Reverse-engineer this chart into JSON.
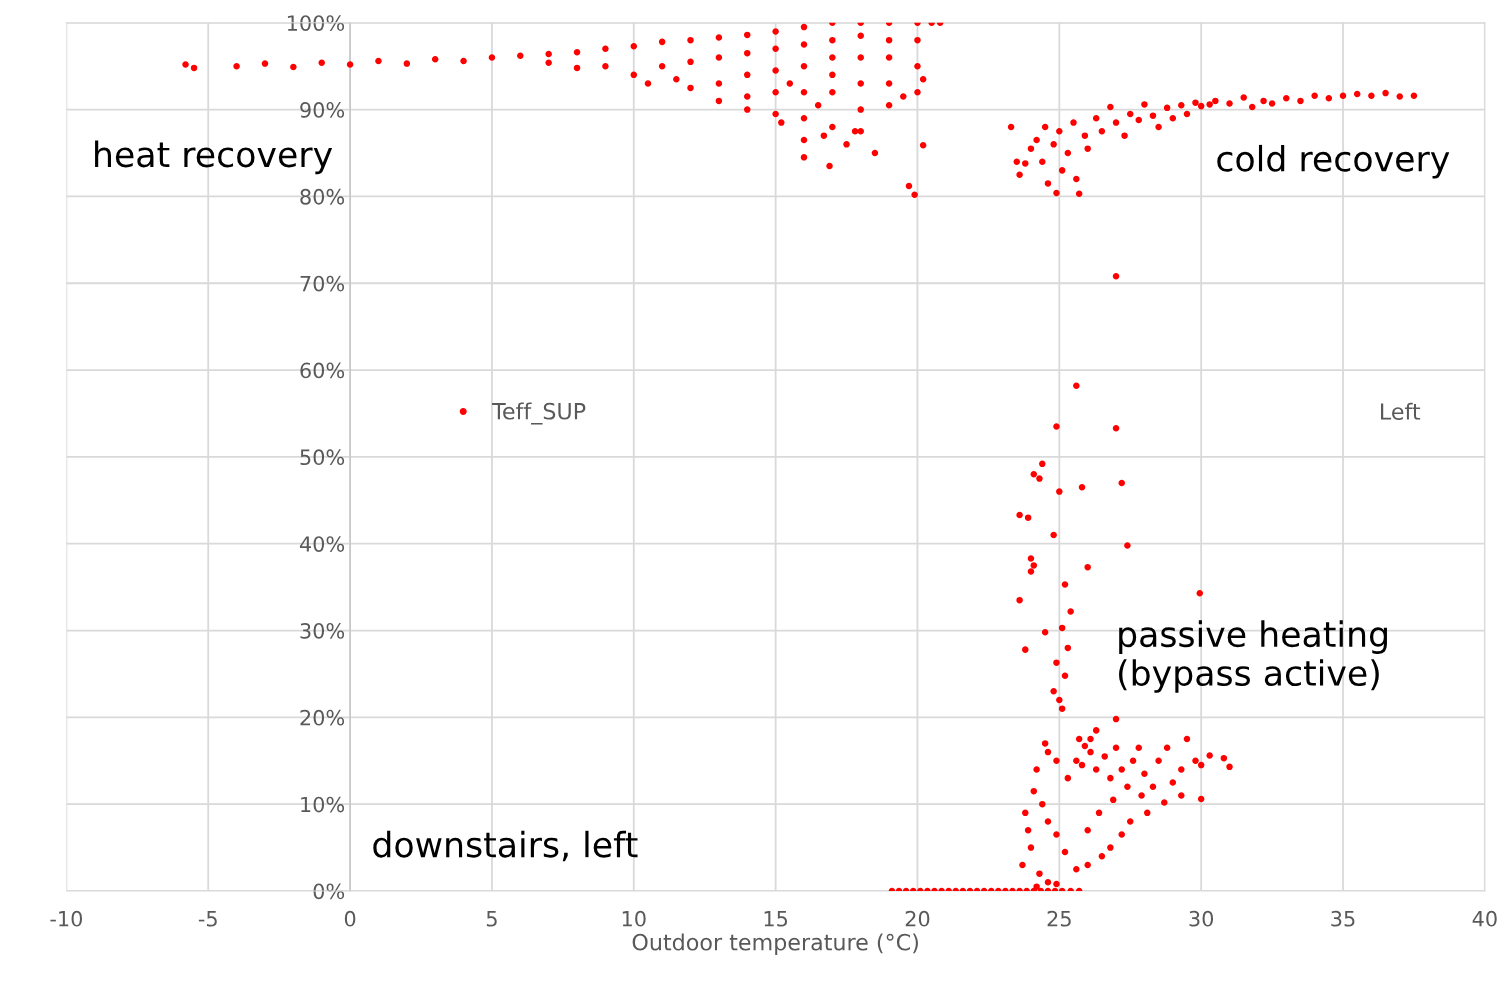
{
  "chart_data": {
    "type": "scatter",
    "title": "Left",
    "xlabel": "Outdoor temperature (°C)",
    "xlim": [
      -10,
      40
    ],
    "xticks": [
      -10,
      -5,
      0,
      5,
      10,
      15,
      20,
      25,
      30,
      35,
      40
    ],
    "ylim": [
      0,
      100
    ],
    "yticks": [
      {
        "value": 0,
        "label": "0%"
      },
      {
        "value": 10,
        "label": "10%"
      },
      {
        "value": 20,
        "label": "20%"
      },
      {
        "value": 30,
        "label": "30%"
      },
      {
        "value": 40,
        "label": "40%"
      },
      {
        "value": 50,
        "label": "50%"
      },
      {
        "value": 60,
        "label": "60%"
      },
      {
        "value": 70,
        "label": "70%"
      },
      {
        "value": 80,
        "label": "80%"
      },
      {
        "value": 90,
        "label": "90%"
      },
      {
        "value": 100,
        "label": "100%"
      }
    ],
    "grid": true,
    "legend": "left",
    "marker": "circle",
    "annotations": [
      "heat recovery",
      "cold recovery",
      "passive heating\n(bypass active)",
      "downstairs, left"
    ],
    "series": [
      {
        "name": "Teff_SUP",
        "color": "#ff0000",
        "x": [
          -5.8,
          -5.5,
          -4,
          -3,
          -2,
          -1,
          0,
          1,
          2,
          3,
          4,
          5,
          6,
          7,
          7,
          8,
          8,
          9,
          9,
          10,
          10,
          10.5,
          11,
          11,
          11.5,
          12,
          12,
          12,
          13,
          13,
          13,
          13,
          14,
          14,
          14,
          14,
          14,
          15,
          15,
          15,
          15,
          15,
          15.2,
          15.5,
          16,
          16,
          16,
          16,
          16,
          16,
          16,
          16.5,
          16.7,
          16.9,
          17,
          17,
          17,
          17,
          17,
          17,
          17.5,
          17.8,
          18,
          18,
          18,
          18,
          18,
          18,
          18.5,
          19,
          19,
          19,
          19,
          19,
          19.5,
          20,
          20,
          20,
          20,
          20.2,
          20.5,
          20.8,
          19.7,
          19.9,
          20.2,
          23.3,
          23.5,
          23.6,
          23.8,
          24,
          24.2,
          24.4,
          24.5,
          24.6,
          24.8,
          24.9,
          25,
          25.1,
          25.3,
          25.5,
          25.6,
          25.7,
          25.9,
          26,
          26.3,
          26.5,
          26.8,
          27,
          27.3,
          27.5,
          27.8,
          28,
          28.3,
          28.5,
          28.8,
          29,
          29.3,
          29.5,
          29.8,
          30,
          30.3,
          30.5,
          31,
          31.5,
          31.8,
          32.2,
          32.5,
          33,
          33.5,
          34,
          34.5,
          35,
          35.5,
          36,
          36.5,
          37,
          37.5,
          27.0,
          25.6,
          24.9,
          27.0,
          24.4,
          24.1,
          24.3,
          25,
          25.8,
          27.2,
          23.6,
          23.9,
          24.8,
          27.4,
          24.0,
          24.1,
          24.0,
          26,
          23.6,
          25.2,
          29.95,
          25.4,
          24.5,
          25.1,
          23.8,
          25.3,
          24.9,
          25.2,
          24.8,
          25,
          25.1,
          27.0,
          26.3,
          26.1,
          24.5,
          25.7,
          25.9,
          24.2,
          24.6,
          24.9,
          25.3,
          25.6,
          25.8,
          26.1,
          26.3,
          26.6,
          26.8,
          27,
          27.2,
          27.4,
          27.6,
          27.8,
          28,
          28.3,
          28.5,
          28.8,
          29,
          29.3,
          29.5,
          29.8,
          30,
          30.3,
          30.8,
          31,
          30,
          29.3,
          28.7,
          28.1,
          27.5,
          27.2,
          26.8,
          26.5,
          26,
          25.6,
          25.2,
          24.9,
          24.6,
          24.4,
          24.1,
          23.8,
          23.9,
          24,
          23.7,
          24.3,
          24.6,
          24.2,
          24.9,
          25.1,
          25.4,
          25.7,
          26,
          26.4,
          26.9,
          27.9,
          19.1,
          19.35,
          19.6,
          19.85,
          20.1,
          20.35,
          20.6,
          20.85,
          21.1,
          21.35,
          21.6,
          21.85,
          22.1,
          22.35,
          22.6,
          22.85,
          23.1,
          23.35,
          23.6,
          23.85,
          24.1,
          24.35,
          24.6,
          24.85
        ],
        "values": [
          95.2,
          94.8,
          95,
          95.3,
          94.9,
          95.4,
          95.2,
          95.6,
          95.3,
          95.8,
          95.6,
          96,
          96.2,
          96.4,
          95.4,
          96.6,
          94.8,
          97,
          95,
          97.3,
          94,
          93,
          97.8,
          95,
          93.5,
          98,
          95.5,
          92.5,
          98.3,
          96,
          93,
          91,
          98.6,
          96.5,
          94,
          91.5,
          90,
          99,
          97,
          94.5,
          92,
          89.5,
          88.5,
          93,
          99.5,
          97.5,
          95,
          92,
          89,
          86.5,
          84.5,
          90.5,
          87,
          83.5,
          100,
          98,
          96,
          94,
          92,
          88,
          86,
          87.5,
          100,
          98.5,
          96,
          93,
          90,
          87.5,
          85,
          100,
          98,
          96,
          93,
          90.5,
          91.5,
          100,
          98,
          95,
          92,
          93.5,
          100,
          100,
          81.2,
          80.2,
          85.9,
          88,
          84,
          82.5,
          83.8,
          85.5,
          86.5,
          84,
          88,
          81.5,
          86,
          80.4,
          87.5,
          83,
          85,
          88.5,
          82,
          80.3,
          87,
          85.5,
          89,
          87.5,
          90.3,
          88.5,
          87,
          89.5,
          88.8,
          90.6,
          89.3,
          88,
          90.2,
          89,
          90.5,
          89.5,
          90.8,
          90.4,
          90.6,
          91,
          90.7,
          91.4,
          90.3,
          91,
          90.7,
          91.3,
          91,
          91.6,
          91.3,
          91.6,
          91.8,
          91.6,
          91.9,
          91.5,
          91.6,
          70.8,
          58.2,
          53.5,
          53.3,
          49.2,
          48,
          47.5,
          46,
          46.5,
          47,
          43.3,
          43,
          41,
          39.8,
          38.3,
          37.5,
          36.8,
          37.3,
          33.5,
          35.3,
          34.3,
          32.2,
          29.8,
          30.3,
          27.8,
          28,
          26.3,
          24.8,
          23,
          22,
          21,
          19.8,
          18.5,
          17.5,
          17,
          17.5,
          16.7,
          14,
          16,
          15,
          13,
          15,
          14.5,
          16,
          14,
          15.5,
          13,
          16.5,
          14,
          12,
          15,
          16.5,
          13.5,
          12,
          15,
          16.5,
          12.5,
          14,
          17.5,
          15,
          14.5,
          15.6,
          15.3,
          14.3,
          10.6,
          11,
          10.2,
          9,
          8,
          6.5,
          5,
          4,
          3,
          2.5,
          4.5,
          6.5,
          8,
          10,
          11.5,
          9,
          7,
          5,
          3,
          2,
          1,
          0.5,
          0.8,
          0,
          0,
          0,
          7,
          9,
          10.5,
          11,
          0,
          0,
          0,
          0,
          0,
          0,
          0,
          0,
          0,
          0,
          0,
          0,
          0,
          0,
          0,
          0,
          0,
          0,
          0,
          0,
          0,
          0,
          0,
          0
        ]
      }
    ]
  }
}
